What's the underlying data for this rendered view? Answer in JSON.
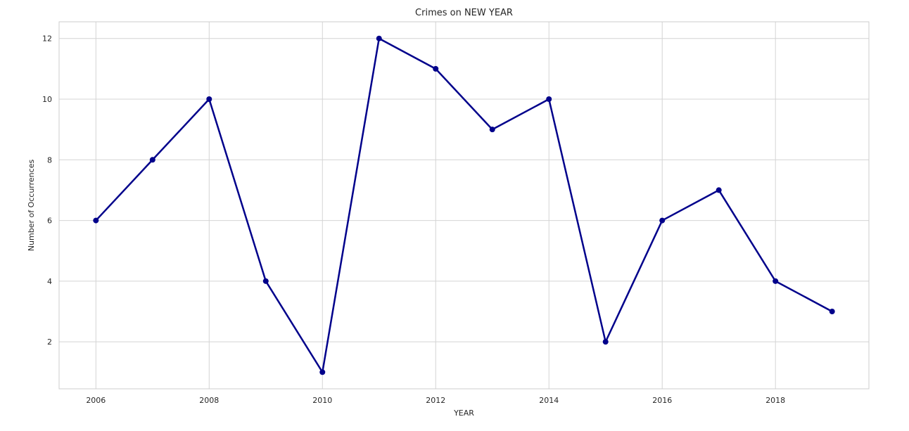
{
  "chart_data": {
    "type": "line",
    "title": "Crimes on NEW YEAR",
    "xlabel": "YEAR",
    "ylabel": "Number of Occurrences",
    "x": [
      2006,
      2007,
      2008,
      2009,
      2010,
      2011,
      2012,
      2013,
      2014,
      2015,
      2016,
      2017,
      2018,
      2019
    ],
    "series": [
      {
        "values": [
          6,
          8,
          10,
          4,
          1,
          12,
          11,
          9,
          10,
          2,
          6,
          7,
          4,
          3
        ],
        "color": "#00008b",
        "marker": "circle"
      }
    ],
    "xlim": [
      2005.35,
      2019.65
    ],
    "ylim": [
      0.45,
      12.55
    ],
    "xticks": [
      2006,
      2008,
      2010,
      2012,
      2014,
      2016,
      2018
    ],
    "yticks": [
      2,
      4,
      6,
      8,
      10,
      12
    ],
    "grid": true,
    "style": "whitegrid"
  }
}
